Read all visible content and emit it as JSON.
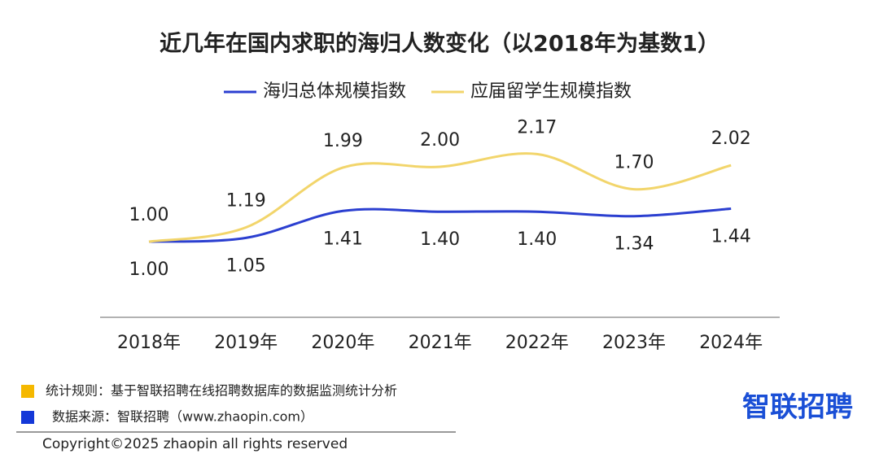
{
  "chart_data": {
    "type": "line",
    "title": "近几年在国内求职的海归人数变化（以2018年为基数1）",
    "categories": [
      "2018年",
      "2019年",
      "2020年",
      "2021年",
      "2022年",
      "2023年",
      "2024年"
    ],
    "series": [
      {
        "name": "海归总体规模指数",
        "color": "#2b3fd0",
        "values": [
          1,
          1.05,
          1.41,
          1.4,
          1.4,
          1.34,
          1.44
        ],
        "value_labels": [
          "1.00",
          "1.05",
          "1.41",
          "1.40",
          "1.40",
          "1.34",
          "1.44"
        ]
      },
      {
        "name": "应届留学生规模指数",
        "color": "#f2d56b",
        "values": [
          1,
          1.19,
          1.99,
          2,
          2.17,
          1.7,
          2.02
        ],
        "value_labels": [
          "1.00",
          "1.19",
          "1.99",
          "2.00",
          "2.17",
          "1.70",
          "2.02"
        ]
      }
    ]
  },
  "footnotes": [
    {
      "color": "#f5b800",
      "text": "统计规则：基于智联招聘在线招聘数据库的数据监测统计分析"
    },
    {
      "color": "#1438d8",
      "text": "数据来源：智联招聘（www.zhaopin.com）"
    }
  ],
  "copyright": "Copyright©2025 zhaopin all rights reserved",
  "logo": "智联招聘"
}
